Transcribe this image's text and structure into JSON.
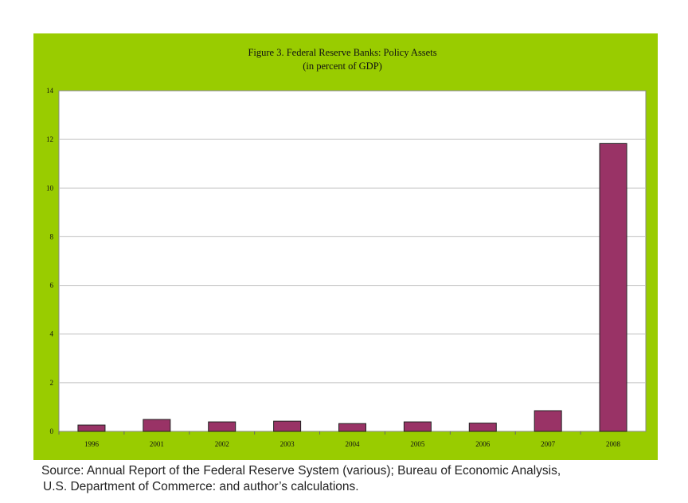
{
  "chart_data": {
    "type": "bar",
    "title": "Figure 3. Federal Reserve Banks: Policy Assets",
    "subtitle": "(in percent of GDP)",
    "xlabel": "",
    "ylabel": "",
    "categories": [
      "1996",
      "2001",
      "2002",
      "2003",
      "2004",
      "2005",
      "2006",
      "2007",
      "2008"
    ],
    "values": [
      0.26,
      0.49,
      0.39,
      0.42,
      0.32,
      0.39,
      0.34,
      0.85,
      11.83
    ],
    "ylim": [
      0,
      14
    ],
    "yticks": [
      "0",
      "2",
      "4",
      "6",
      "8",
      "10",
      "12",
      "14"
    ],
    "grid": true,
    "legend": "none",
    "colors": {
      "bar": "#993366",
      "background": "#99CC00",
      "plot": "#FFFFFF",
      "grid": "#C0C0C0"
    }
  },
  "source": {
    "line1": "Source: Annual Report of the Federal Reserve System (various); Bureau of Economic Analysis,",
    "line2": "U.S. Department of Commerce: and author’s calculations."
  }
}
